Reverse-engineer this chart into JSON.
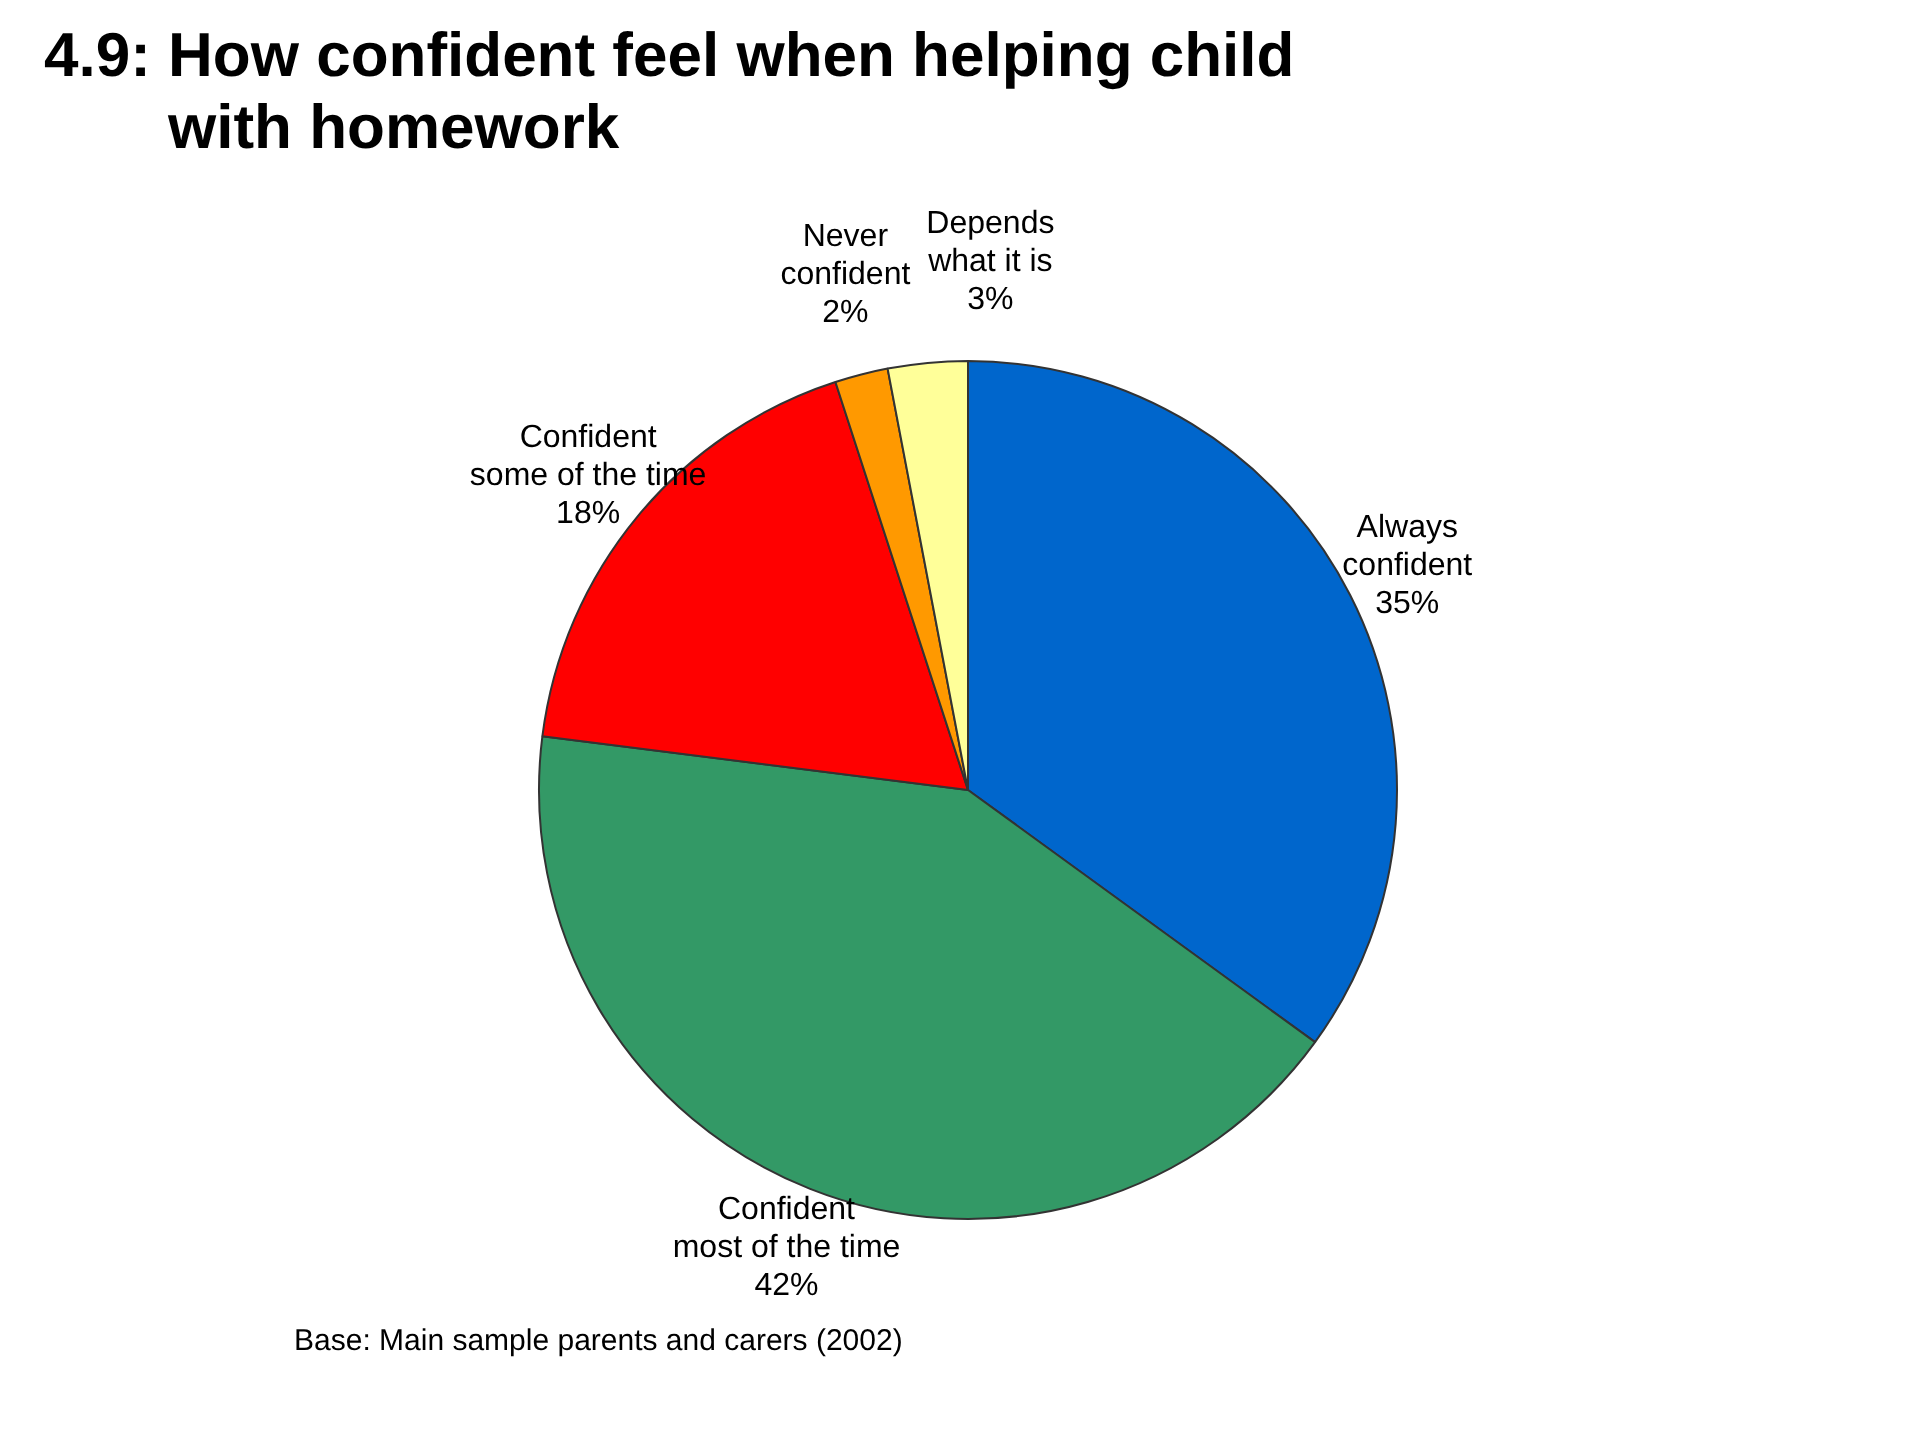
{
  "chart_data": {
    "type": "pie",
    "title": "4.9: How confident feel when helping child with homework",
    "categories": [
      "Always\nconfident",
      "Confident\nmost of the time",
      "Confident\nsome of the time",
      "Never\nconfident",
      "Depends\nwhat it is"
    ],
    "values": [
      35,
      42,
      18,
      2,
      3
    ],
    "colors": [
      "#0066cc",
      "#339966",
      "#ff0000",
      "#ff9900",
      "#ffff99"
    ],
    "value_labels": [
      "35%",
      "42%",
      "18%",
      "2%",
      "3%"
    ],
    "legend": false,
    "annotations": [
      "Base:  Main sample parents and carers (2002)"
    ]
  }
}
